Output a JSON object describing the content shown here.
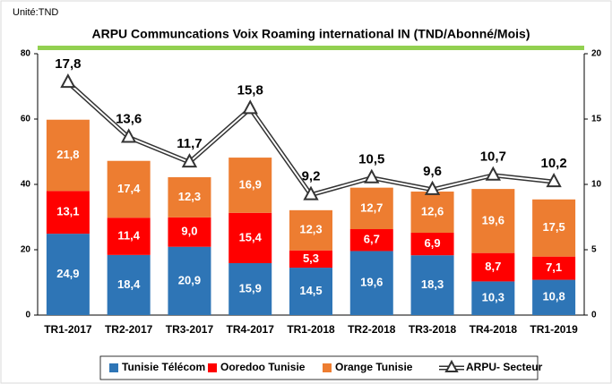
{
  "chart_data": {
    "type": "stacked-bar-line",
    "unit": "Unité:TND",
    "title": "ARPU Communcations  Voix Roaming international IN  (TND/Abonné/Mois)",
    "categories": [
      "TR1-2017",
      "TR2-2017",
      "TR3-2017",
      "TR4-2017",
      "TR1-2018",
      "TR2-2018",
      "TR3-2018",
      "TR4-2018",
      "TR1-2019"
    ],
    "series": [
      {
        "name": "Tunisie Télécom",
        "color": "#2e75b6",
        "values": [
          24.9,
          18.4,
          20.9,
          15.9,
          14.5,
          19.6,
          18.3,
          10.3,
          10.8
        ],
        "value_labels": [
          "24,9",
          "18,4",
          "20,9",
          "15,9",
          "14,5",
          "19,6",
          "18,3",
          "10,3",
          "10,8"
        ]
      },
      {
        "name": "Ooredoo Tunisie",
        "color": "#ff0000",
        "values": [
          13.1,
          11.4,
          9.0,
          15.4,
          5.3,
          6.7,
          6.9,
          8.7,
          7.1
        ],
        "value_labels": [
          "13,1",
          "11,4",
          "9,0",
          "15,4",
          "5,3",
          "6,7",
          "6,9",
          "8,7",
          "7,1"
        ]
      },
      {
        "name": "Orange Tunisie",
        "color": "#ed7d31",
        "values": [
          21.8,
          17.4,
          12.3,
          16.9,
          12.3,
          12.7,
          12.6,
          19.6,
          17.5
        ],
        "value_labels": [
          "21,8",
          "17,4",
          "12,3",
          "16,9",
          "12,3",
          "12,7",
          "12,6",
          "19,6",
          "17,5"
        ]
      },
      {
        "name": "ARPU- Secteur",
        "color": "#333333",
        "axis": "y2",
        "values": [
          17.8,
          13.6,
          11.7,
          15.8,
          9.2,
          10.5,
          9.6,
          10.7,
          10.2
        ],
        "value_labels": [
          "17,8",
          "13,6",
          "11,7",
          "15,8",
          "9,2",
          "10,5",
          "9,6",
          "10,7",
          "10,2"
        ]
      }
    ],
    "ylim": [
      0,
      80
    ],
    "yticks": [
      0,
      20,
      40,
      60,
      80
    ],
    "y2lim": [
      0,
      20
    ],
    "y2ticks": [
      0,
      5,
      10,
      15,
      20
    ],
    "legend": "bottom"
  }
}
